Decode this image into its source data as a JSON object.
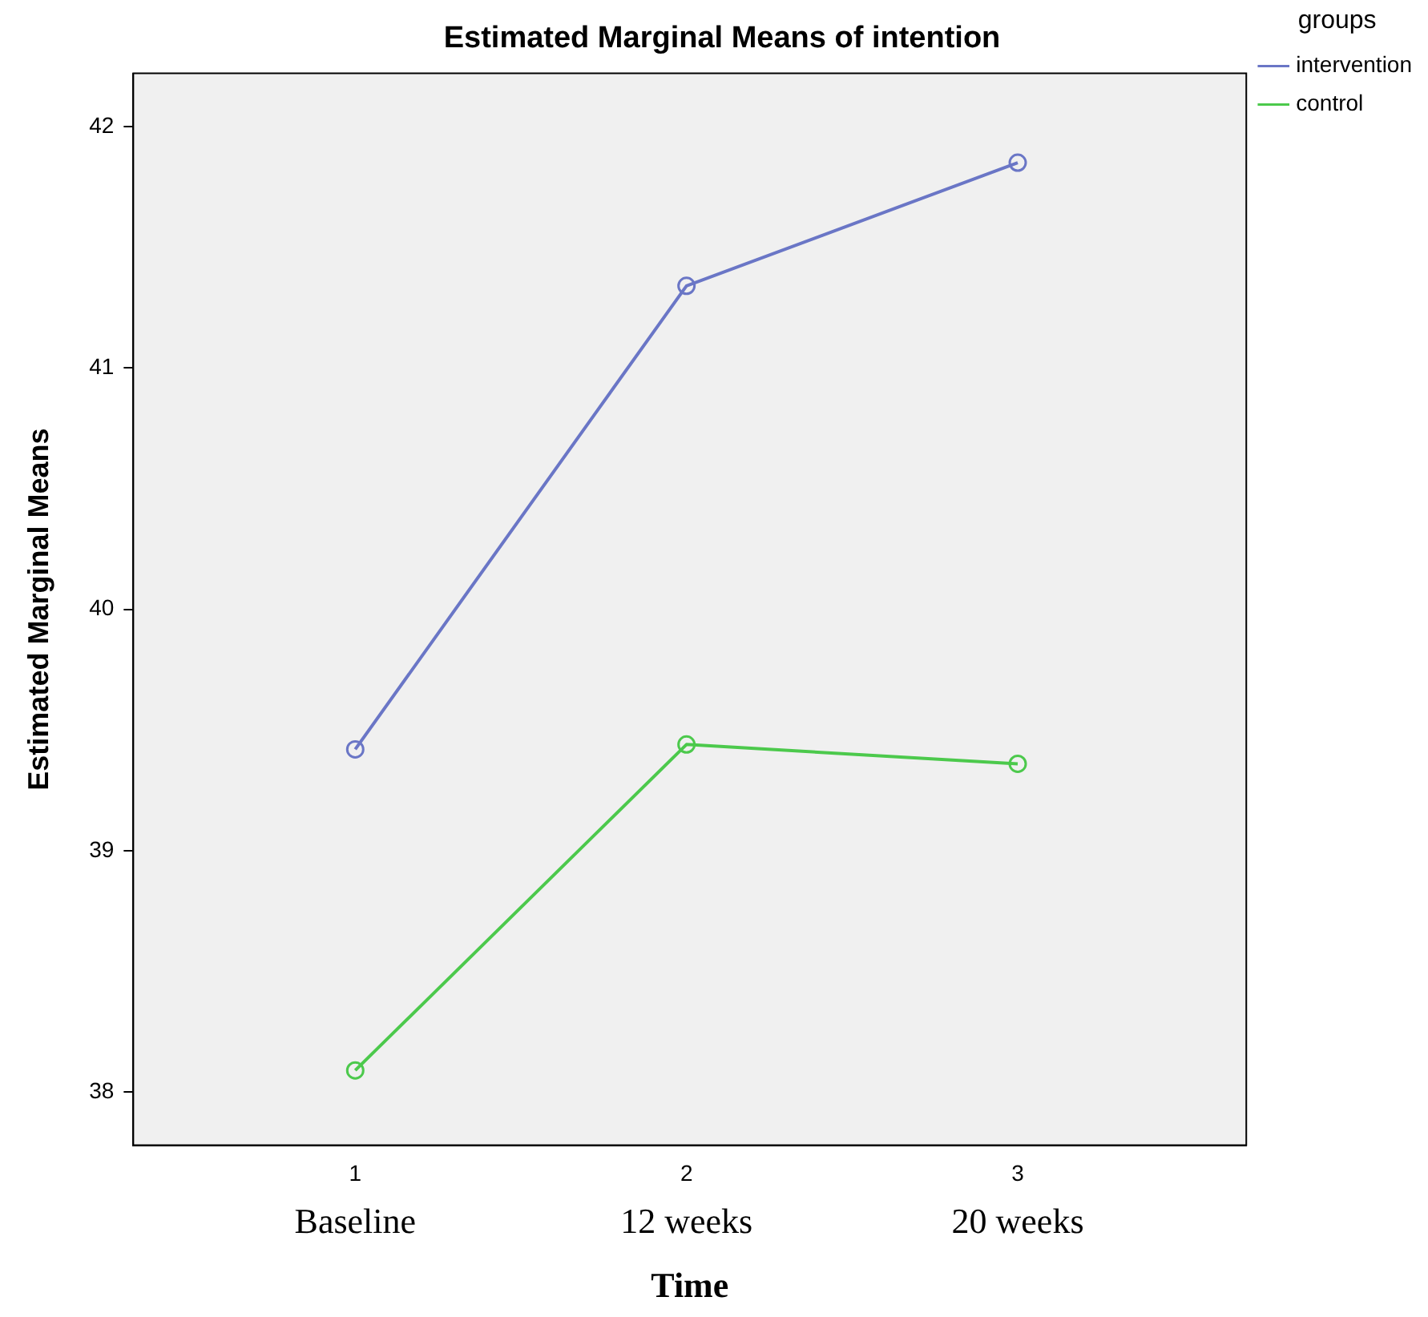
{
  "chart_data": {
    "type": "line",
    "title": "Estimated Marginal Means of intention",
    "xlabel": "Time",
    "ylabel": "Estimated Marginal Means",
    "legend_title": "groups",
    "x": [
      1,
      2,
      3
    ],
    "xlim": [
      0.33,
      3.69
    ],
    "xticks": [
      1,
      2,
      3
    ],
    "ylim": [
      37.78,
      42.22
    ],
    "yticks": [
      38,
      39,
      40,
      41,
      42
    ],
    "series": [
      {
        "name": "intervention",
        "color": "#6a76c6",
        "values": [
          39.42,
          41.34,
          41.85
        ]
      },
      {
        "name": "control",
        "color": "#4cc94c",
        "values": [
          38.09,
          39.44,
          39.36
        ]
      }
    ],
    "annotations": [
      "Baseline",
      "12 weeks",
      "20 weeks"
    ],
    "marker": "circle",
    "line_style": "solid",
    "grid": false,
    "legend": "top right"
  }
}
